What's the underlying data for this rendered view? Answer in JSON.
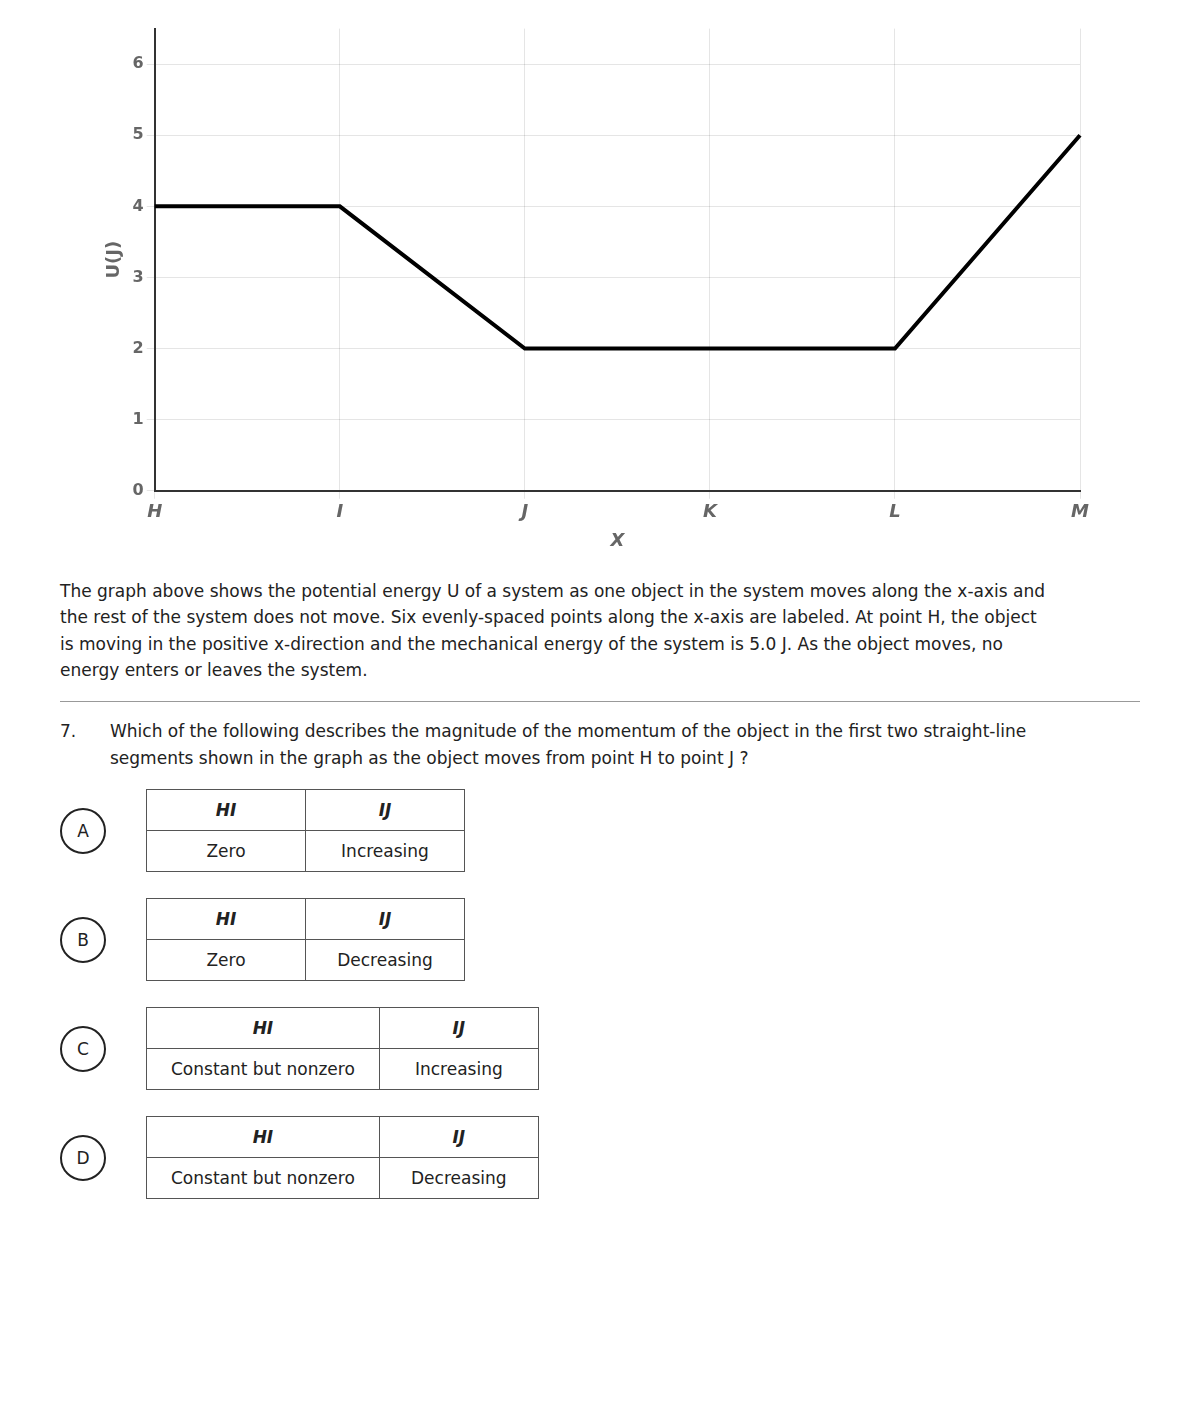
{
  "chart_data": {
    "type": "line",
    "x_label": "X",
    "y_label": "U(J)",
    "categories": [
      "H",
      "I",
      "J",
      "K",
      "L",
      "M"
    ],
    "values": [
      4,
      4,
      2,
      2,
      2,
      5
    ],
    "color": "#000000",
    "ylim": [
      0,
      6.5
    ],
    "yticks": [
      0,
      1,
      2,
      3,
      4,
      5,
      6
    ],
    "grid": true,
    "paragraph_lines": [
      "The graph above shows the potential energy U of a system as one object in the system moves along the x-axis and",
      "the rest of the system does not move. Six evenly-spaced points along the x-axis are labeled. At point H, the object",
      "is moving in the positive x-direction and the mechanical energy of the system is 5.0 J. As the object moves, no",
      "energy enters or leaves the system."
    ],
    "question_number": "7.",
    "question_lines": [
      "Which of the following describes the magnitude of the momentum of the object in the first two straight-line",
      "segments shown in the graph as the object moves from point H to point J ?"
    ],
    "options": [
      {
        "letter": "A",
        "headers": [
          "HI",
          "IJ"
        ],
        "values": [
          "Zero",
          "Increasing"
        ]
      },
      {
        "letter": "B",
        "headers": [
          "HI",
          "IJ"
        ],
        "values": [
          "Zero",
          "Decreasing"
        ]
      },
      {
        "letter": "C",
        "headers": [
          "HI",
          "IJ"
        ],
        "values": [
          "Constant but nonzero",
          "Increasing"
        ]
      },
      {
        "letter": "D",
        "headers": [
          "HI",
          "IJ"
        ],
        "values": [
          "Constant but nonzero",
          "Decreasing"
        ]
      }
    ]
  }
}
